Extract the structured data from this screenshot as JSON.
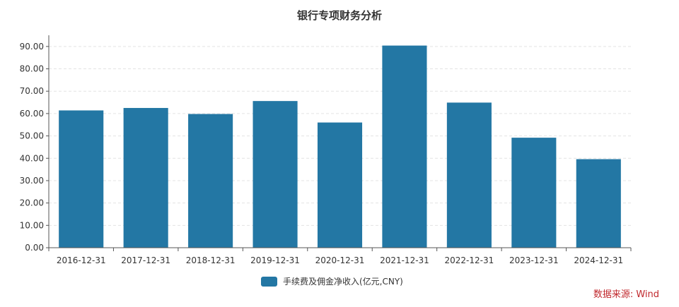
{
  "chart_data": {
    "type": "bar",
    "title": "银行专项财务分析",
    "categories": [
      "2016-12-31",
      "2017-12-31",
      "2018-12-31",
      "2019-12-31",
      "2020-12-31",
      "2021-12-31",
      "2022-12-31",
      "2023-12-31",
      "2024-12-31"
    ],
    "series": [
      {
        "name": "手续费及佣金净收入(亿元,CNY)",
        "color": "#2377a4",
        "values": [
          61.4,
          62.5,
          59.8,
          65.6,
          56.0,
          90.4,
          64.9,
          49.2,
          39.6
        ]
      }
    ],
    "ylim": [
      0,
      95
    ],
    "yticks": [
      "0.00",
      "10.00",
      "20.00",
      "30.00",
      "40.00",
      "50.00",
      "60.00",
      "70.00",
      "80.00",
      "90.00"
    ],
    "grid": true,
    "legend_position": "bottom-center",
    "source": "数据来源: Wind",
    "source_color": "#c0282d"
  }
}
